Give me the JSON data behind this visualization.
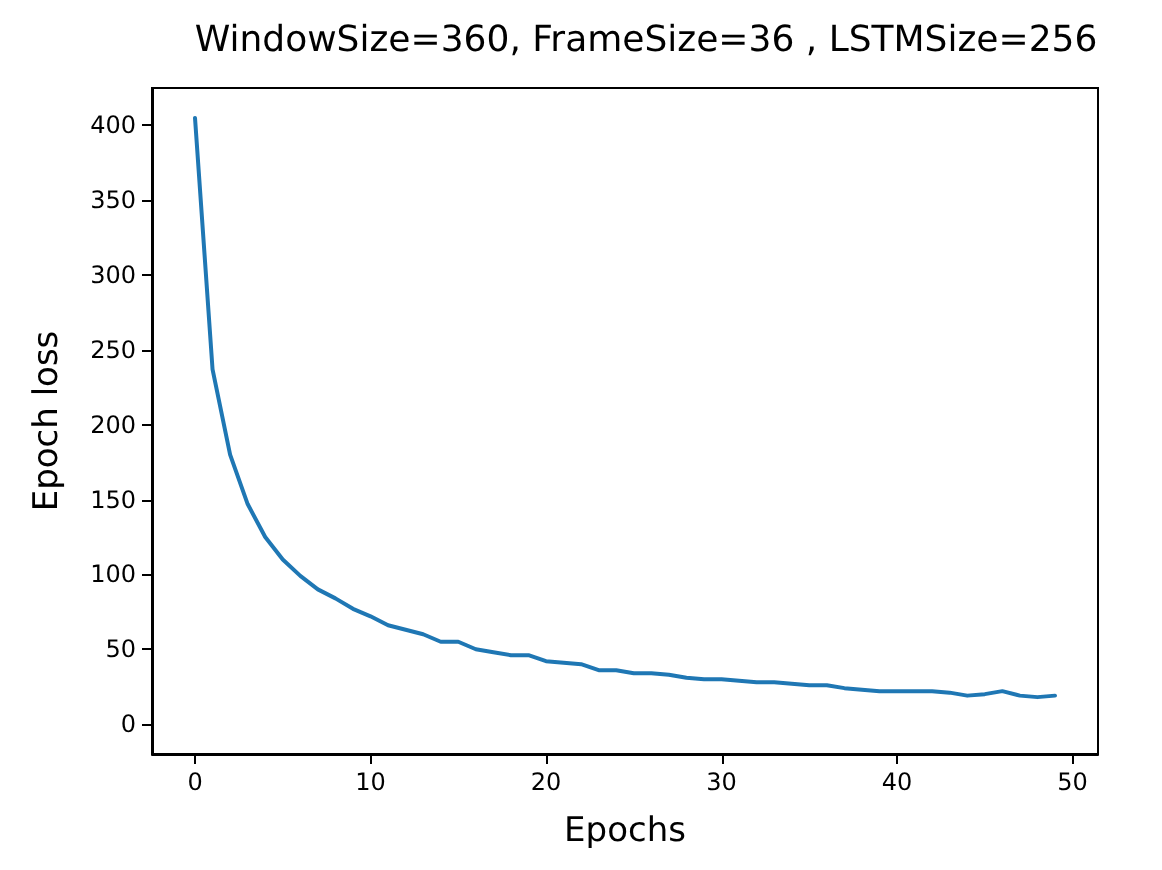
{
  "chart_data": {
    "type": "line",
    "title": "WindowSize=360, FrameSize=36 , LSTMSize=256",
    "xlabel": "Epochs",
    "ylabel": "Epoch loss",
    "x": [
      0,
      1,
      2,
      3,
      4,
      5,
      6,
      7,
      8,
      9,
      10,
      11,
      12,
      13,
      14,
      15,
      16,
      17,
      18,
      19,
      20,
      21,
      22,
      23,
      24,
      25,
      26,
      27,
      28,
      29,
      30,
      31,
      32,
      33,
      34,
      35,
      36,
      37,
      38,
      39,
      40,
      41,
      42,
      43,
      44,
      45,
      46,
      47,
      48,
      49
    ],
    "series": [
      {
        "color": "#1f77b4",
        "values": [
          405,
          237,
          180,
          147,
          125,
          110,
          99,
          90,
          84,
          77,
          72,
          66,
          63,
          60,
          55,
          55,
          50,
          48,
          46,
          46,
          42,
          41,
          40,
          36,
          36,
          34,
          34,
          33,
          31,
          30,
          30,
          29,
          28,
          28,
          27,
          26,
          26,
          24,
          23,
          22,
          22,
          22,
          22,
          21,
          19,
          20,
          22,
          19,
          18,
          19
        ]
      }
    ],
    "xlim": [
      -2.45,
      51.45
    ],
    "xticks": [
      0,
      10,
      20,
      30,
      40,
      50
    ],
    "ylim": [
      -20,
      425
    ],
    "yticks": [
      0,
      50,
      100,
      150,
      200,
      250,
      300,
      350,
      400
    ],
    "grid": false,
    "marker": "none",
    "line_style": "solid"
  }
}
